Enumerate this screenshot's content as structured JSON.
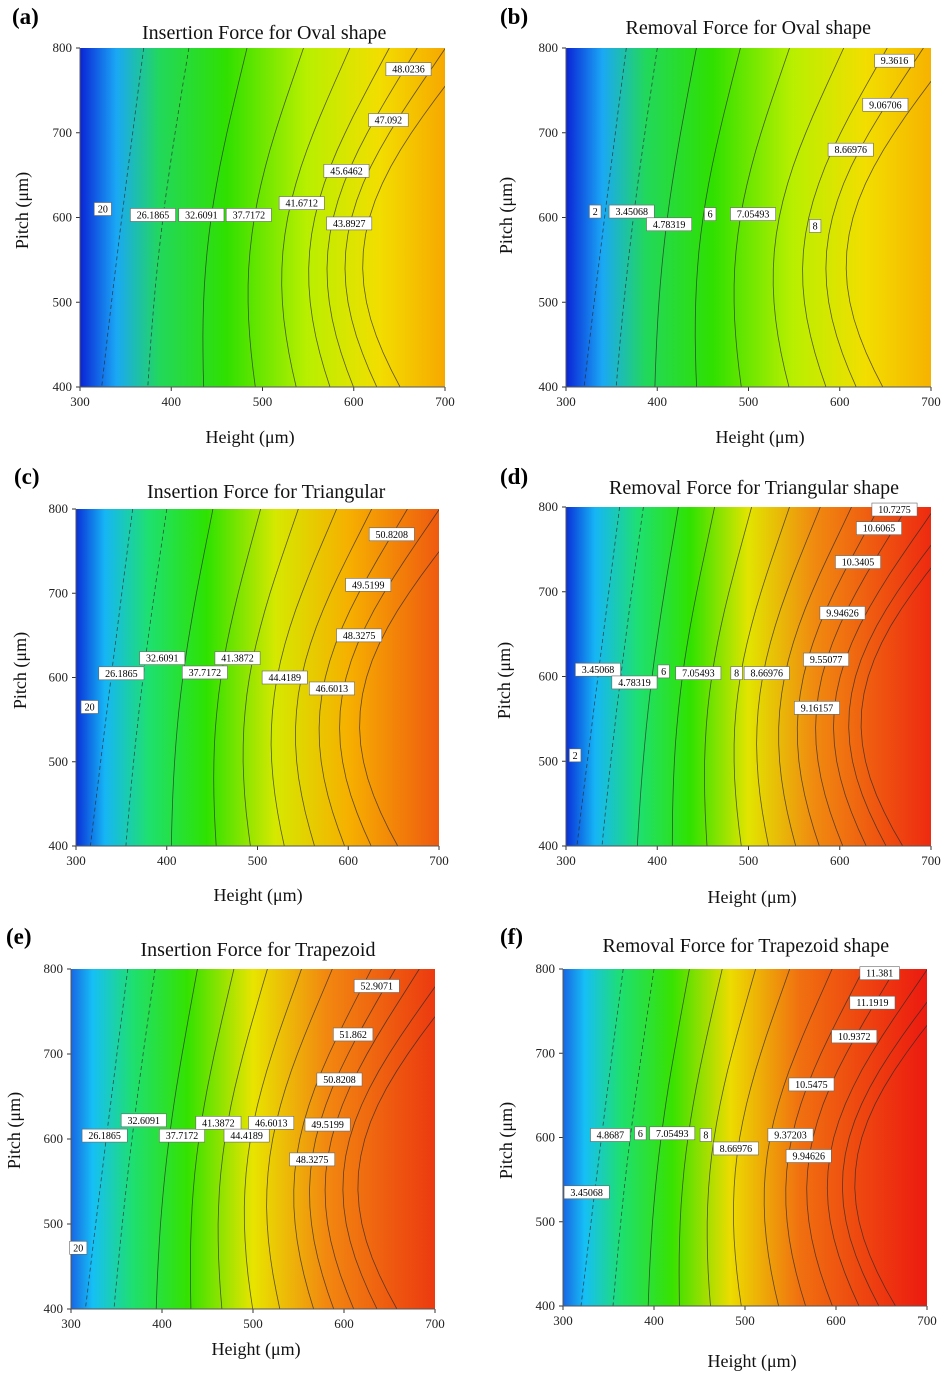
{
  "chart_data": [
    {
      "panel": "(a)",
      "type": "heatmap",
      "title": "Insertion Force for Oval shape",
      "xlabel": "Height  (μm)",
      "ylabel": "Pitch (μm)",
      "xlim": [
        300,
        700
      ],
      "ylim": [
        400,
        800
      ],
      "x_ticks": [
        "300",
        "400",
        "500",
        "600",
        "700"
      ],
      "y_ticks": [
        "400",
        "500",
        "600",
        "700",
        "800"
      ],
      "contour_labels": [
        {
          "text": "20",
          "x": 325,
          "y": 610
        },
        {
          "text": "26.1865",
          "x": 380,
          "y": 603
        },
        {
          "text": "32.6091",
          "x": 433,
          "y": 603
        },
        {
          "text": "37.7172",
          "x": 485,
          "y": 603
        },
        {
          "text": "41.6712",
          "x": 543,
          "y": 617
        },
        {
          "text": "43.8927",
          "x": 595,
          "y": 593
        },
        {
          "text": "45.6462",
          "x": 592,
          "y": 655
        },
        {
          "text": "47.092",
          "x": 638,
          "y": 715
        },
        {
          "text": "48.0236",
          "x": 660,
          "y": 775
        }
      ]
    },
    {
      "panel": "(b)",
      "type": "heatmap",
      "title": "Removal Force for Oval shape",
      "xlabel": "Height  (μm)",
      "ylabel": "Pitch (μm)",
      "xlim": [
        300,
        700
      ],
      "ylim": [
        400,
        800
      ],
      "x_ticks": [
        "300",
        "400",
        "500",
        "600",
        "700"
      ],
      "y_ticks": [
        "400",
        "500",
        "600",
        "700",
        "800"
      ],
      "contour_labels": [
        {
          "text": "2",
          "x": 332,
          "y": 607
        },
        {
          "text": "3.45068",
          "x": 372,
          "y": 607
        },
        {
          "text": "4.78319",
          "x": 413,
          "y": 592
        },
        {
          "text": "6",
          "x": 458,
          "y": 604
        },
        {
          "text": "7.05493",
          "x": 505,
          "y": 604
        },
        {
          "text": "8",
          "x": 573,
          "y": 590
        },
        {
          "text": "8.66976",
          "x": 612,
          "y": 680
        },
        {
          "text": "9.06706",
          "x": 650,
          "y": 733
        },
        {
          "text": "9.3616",
          "x": 660,
          "y": 785
        }
      ]
    },
    {
      "panel": "(c)",
      "type": "heatmap",
      "title": "Insertion Force for Triangular",
      "xlabel": "Height  (μm)",
      "ylabel": "Pitch (μm)",
      "xlim": [
        300,
        700
      ],
      "ylim": [
        400,
        800
      ],
      "x_ticks": [
        "300",
        "400",
        "500",
        "600",
        "700"
      ],
      "y_ticks": [
        "400",
        "500",
        "600",
        "700",
        "800"
      ],
      "contour_labels": [
        {
          "text": "20",
          "x": 315,
          "y": 565
        },
        {
          "text": "26.1865",
          "x": 350,
          "y": 605
        },
        {
          "text": "32.6091",
          "x": 395,
          "y": 623
        },
        {
          "text": "37.7172",
          "x": 442,
          "y": 606
        },
        {
          "text": "41.3872",
          "x": 478,
          "y": 623
        },
        {
          "text": "44.4189",
          "x": 530,
          "y": 600
        },
        {
          "text": "46.6013",
          "x": 582,
          "y": 587
        },
        {
          "text": "48.3275",
          "x": 612,
          "y": 650
        },
        {
          "text": "49.5199",
          "x": 622,
          "y": 710
        },
        {
          "text": "50.8208",
          "x": 648,
          "y": 770
        }
      ]
    },
    {
      "panel": "(d)",
      "type": "heatmap",
      "title": "Removal Force for Triangular shape",
      "xlabel": "Height  (μm)",
      "ylabel": "Pitch (μm)",
      "xlim": [
        300,
        700
      ],
      "ylim": [
        400,
        800
      ],
      "x_ticks": [
        "300",
        "400",
        "500",
        "600",
        "700"
      ],
      "y_ticks": [
        "400",
        "500",
        "600",
        "700",
        "800"
      ],
      "contour_labels": [
        {
          "text": "2",
          "x": 310,
          "y": 507
        },
        {
          "text": "3.45068",
          "x": 335,
          "y": 608
        },
        {
          "text": "4.78319",
          "x": 375,
          "y": 593
        },
        {
          "text": "6",
          "x": 407,
          "y": 606
        },
        {
          "text": "7.05493",
          "x": 445,
          "y": 604
        },
        {
          "text": "8",
          "x": 487,
          "y": 604
        },
        {
          "text": "8.66976",
          "x": 520,
          "y": 604
        },
        {
          "text": "9.16157",
          "x": 575,
          "y": 563
        },
        {
          "text": "9.55077",
          "x": 585,
          "y": 620
        },
        {
          "text": "9.94626",
          "x": 603,
          "y": 675
        },
        {
          "text": "10.3405",
          "x": 620,
          "y": 735
        },
        {
          "text": "10.6065",
          "x": 643,
          "y": 775
        },
        {
          "text": "10.7275",
          "x": 660,
          "y": 797
        }
      ]
    },
    {
      "panel": "(e)",
      "type": "heatmap",
      "title": "Insertion Force for Trapezoid",
      "xlabel": "Height  (μm)",
      "ylabel": "Pitch (μm)",
      "xlim": [
        300,
        700
      ],
      "ylim": [
        400,
        800
      ],
      "x_ticks": [
        "300",
        "400",
        "500",
        "600",
        "700"
      ],
      "y_ticks": [
        "400",
        "500",
        "600",
        "700",
        "800"
      ],
      "contour_labels": [
        {
          "text": "20",
          "x": 308,
          "y": 472
        },
        {
          "text": "26.1865",
          "x": 337,
          "y": 604
        },
        {
          "text": "32.6091",
          "x": 380,
          "y": 622
        },
        {
          "text": "37.7172",
          "x": 422,
          "y": 604
        },
        {
          "text": "41.3872",
          "x": 462,
          "y": 619
        },
        {
          "text": "44.4189",
          "x": 493,
          "y": 604
        },
        {
          "text": "46.6013",
          "x": 520,
          "y": 619
        },
        {
          "text": "49.5199",
          "x": 582,
          "y": 617
        },
        {
          "text": "48.3275",
          "x": 565,
          "y": 576
        },
        {
          "text": "50.8208",
          "x": 595,
          "y": 670
        },
        {
          "text": "51.862",
          "x": 610,
          "y": 723
        },
        {
          "text": "52.9071",
          "x": 636,
          "y": 780
        }
      ]
    },
    {
      "panel": "(f)",
      "type": "heatmap",
      "title": "Removal Force for Trapezoid shape",
      "xlabel": "Height  (μm)",
      "ylabel": "Pitch (μm)",
      "xlim": [
        300,
        700
      ],
      "ylim": [
        400,
        800
      ],
      "x_ticks": [
        "300",
        "400",
        "500",
        "600",
        "700"
      ],
      "y_ticks": [
        "400",
        "500",
        "600",
        "700",
        "800"
      ],
      "contour_labels": [
        {
          "text": "3.45068",
          "x": 326,
          "y": 535
        },
        {
          "text": "4.8687",
          "x": 352,
          "y": 603
        },
        {
          "text": "6",
          "x": 385,
          "y": 605
        },
        {
          "text": "7.05493",
          "x": 420,
          "y": 605
        },
        {
          "text": "8",
          "x": 457,
          "y": 603
        },
        {
          "text": "8.66976",
          "x": 490,
          "y": 587
        },
        {
          "text": "9.37203",
          "x": 550,
          "y": 603
        },
        {
          "text": "9.94626",
          "x": 570,
          "y": 578
        },
        {
          "text": "10.5475",
          "x": 573,
          "y": 663
        },
        {
          "text": "10.9372",
          "x": 620,
          "y": 720
        },
        {
          "text": "11.1919",
          "x": 640,
          "y": 760
        },
        {
          "text": "11.381",
          "x": 648,
          "y": 795
        }
      ]
    }
  ]
}
